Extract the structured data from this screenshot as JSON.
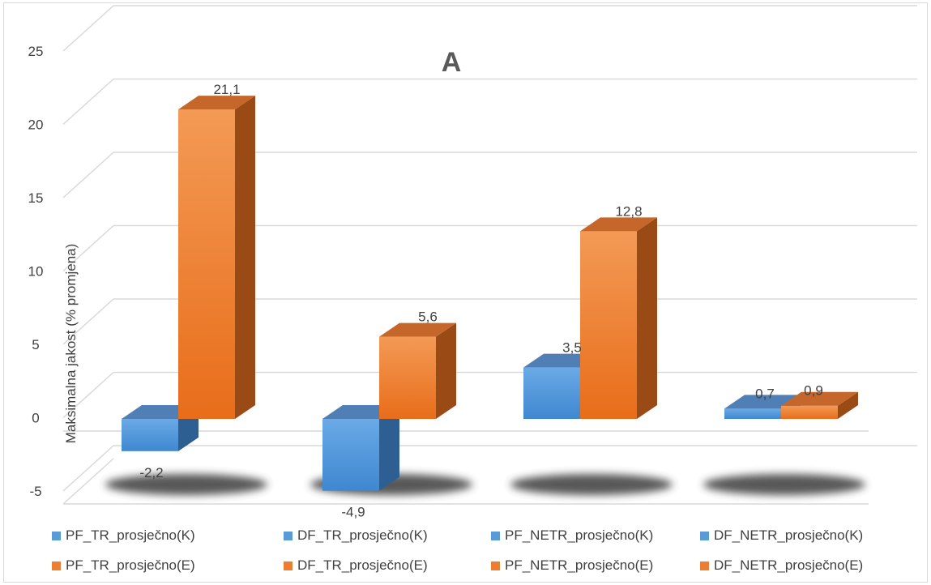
{
  "chart_data": {
    "type": "bar",
    "title": "A",
    "ylabel": "Maksimalna jakost (% promjena)",
    "xlabel": "",
    "ylim": [
      -5,
      25
    ],
    "yticks": [
      "25",
      "20",
      "15",
      "10",
      "5",
      "0",
      "-5"
    ],
    "grid": true,
    "three_d": true,
    "legend_position": "bottom",
    "series": [
      {
        "name": "K",
        "color": "#5b9bd5",
        "values": [
          -2.2,
          -4.9,
          3.5,
          0.7
        ],
        "labels": [
          "-2,2",
          "-4,9",
          "3,5",
          "0,7"
        ]
      },
      {
        "name": "E",
        "color": "#ed7d31",
        "values": [
          21.1,
          5.6,
          12.8,
          0.9
        ],
        "labels": [
          "21,1",
          "5,6",
          "12,8",
          "0,9"
        ]
      }
    ],
    "legend": [
      {
        "label": "PF_TR_prosječno(K)",
        "color": "#5b9bd5"
      },
      {
        "label": "DF_TR_prosječno(K)",
        "color": "#5b9bd5"
      },
      {
        "label": "PF_NETR_prosječno(K)",
        "color": "#5b9bd5"
      },
      {
        "label": "DF_NETR_prosječno(K)",
        "color": "#5b9bd5"
      },
      {
        "label": "PF_TR_prosječno(E)",
        "color": "#ed7d31"
      },
      {
        "label": "DF_TR_prosječno(E)",
        "color": "#ed7d31"
      },
      {
        "label": "PF_NETR_prosječno(E)",
        "color": "#ed7d31"
      },
      {
        "label": "DF_NETR_prosječno(E)",
        "color": "#ed7d31"
      }
    ]
  }
}
